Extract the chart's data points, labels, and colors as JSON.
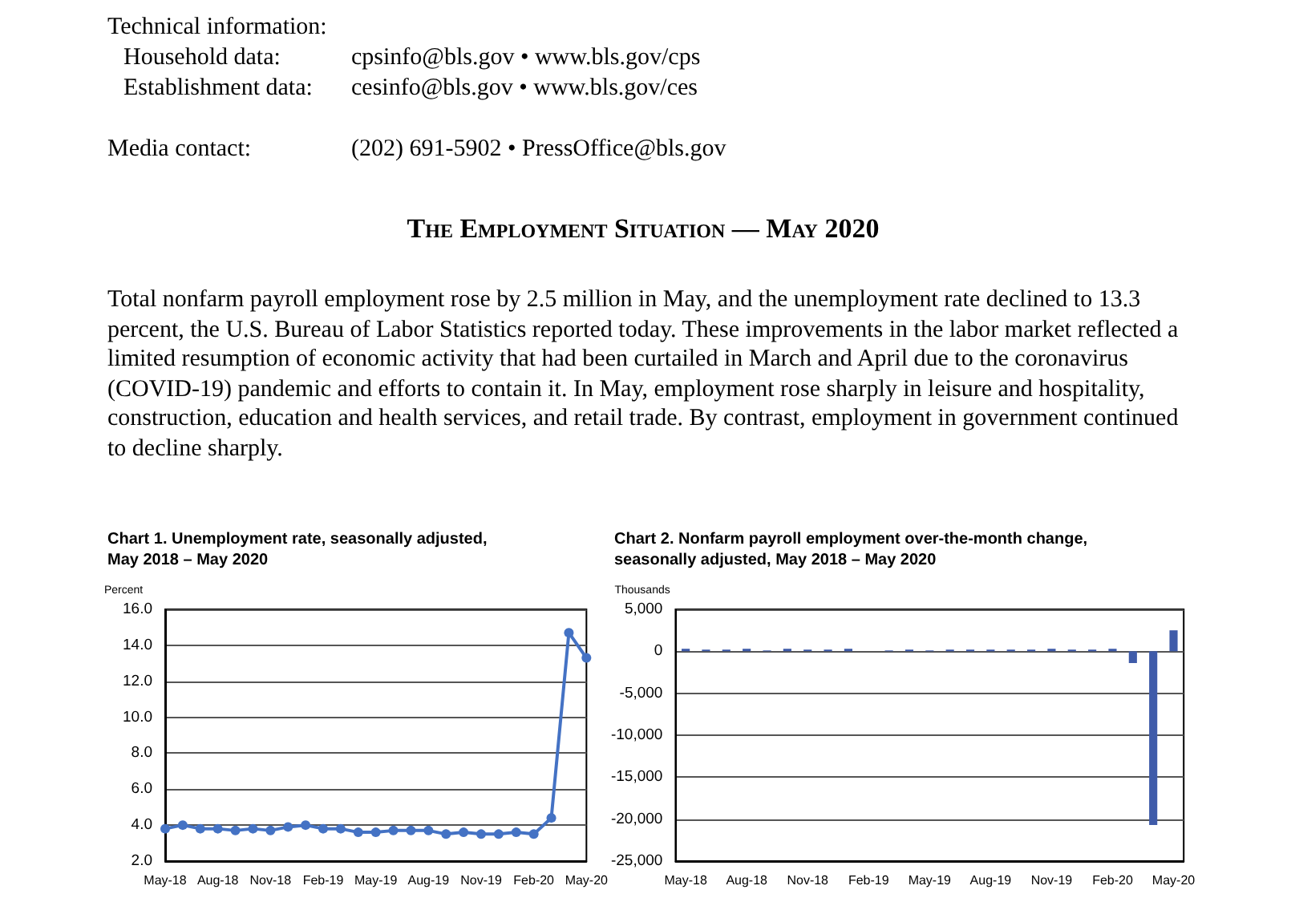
{
  "chart_data": [
    {
      "type": "other",
      "title": "The Employment Situation — May 2020",
      "annotations": [
        "Technical information:",
        "Household data:",
        "cpsinfo@bls.gov • www.bls.gov/cps",
        "Establishment data:",
        "cesinfo@bls.gov • www.bls.gov/ces",
        "Media contact:",
        "(202) 691-5902 • PressOffice@bls.gov",
        "Total nonfarm payroll employment rose by 2.5 million in May, and the unemployment rate declined to 13.3 percent, the U.S. Bureau of Labor Statistics reported today. These improvements in the labor market reflected a limited resumption of economic activity that had been curtailed in March and April due to the coronavirus (COVID-19) pandemic and efforts to contain it. In May, employment rose sharply in leisure and hospitality, construction, education and health services, and retail trade. By contrast, employment in government continued to decline sharply."
      ]
    },
    {
      "type": "line",
      "title": "Chart 1. Unemployment rate, seasonally adjusted,\nMay 2018 – May 2020",
      "ylabel": "Percent",
      "categories": [
        "May-18",
        null,
        null,
        "Aug-18",
        null,
        null,
        "Nov-18",
        null,
        null,
        "Feb-19",
        null,
        null,
        "May-19",
        null,
        null,
        "Aug-19",
        null,
        null,
        "Nov-19",
        null,
        null,
        "Feb-20",
        null,
        null,
        "May-20"
      ],
      "series": [
        {
          "color": "#4472c4",
          "values": [
            3.8,
            4.0,
            3.8,
            3.8,
            3.7,
            3.8,
            3.7,
            3.9,
            4.0,
            3.8,
            3.8,
            3.6,
            3.6,
            3.7,
            3.7,
            3.7,
            3.5,
            3.6,
            3.5,
            3.5,
            3.6,
            3.5,
            4.4,
            14.7,
            13.3
          ]
        }
      ],
      "ylim": [
        2,
        16
      ],
      "yticks": [
        {
          "value": 2,
          "label": "2.0"
        },
        {
          "value": 4,
          "label": "4.0"
        },
        {
          "value": 6,
          "label": "6.0"
        },
        {
          "value": 8,
          "label": "8.0"
        },
        {
          "value": 10,
          "label": "10.0"
        },
        {
          "value": 12,
          "label": "12.0"
        },
        {
          "value": 14,
          "label": "14.0"
        },
        {
          "value": 16,
          "label": "16.0"
        }
      ],
      "grid": "y",
      "marker": "circle",
      "line_style": "solid"
    },
    {
      "type": "bar",
      "title": "Chart 2. Nonfarm payroll employment over-the-month change,\nseasonally adjusted, May 2018 – May 2020",
      "ylabel": "Thousands",
      "categories": [
        "May-18",
        null,
        null,
        "Aug-18",
        null,
        null,
        "Nov-18",
        null,
        null,
        "Feb-19",
        null,
        null,
        "May-19",
        null,
        null,
        "Aug-19",
        null,
        null,
        "Nov-19",
        null,
        null,
        "Feb-20",
        null,
        null,
        "May-20"
      ],
      "series": [
        {
          "color": "#3f5ba9",
          "values": [
            300,
            200,
            200,
            300,
            100,
            300,
            200,
            200,
            300,
            0,
            100,
            200,
            100,
            200,
            200,
            200,
            200,
            200,
            300,
            200,
            200,
            300,
            -1400,
            -20700,
            2500
          ]
        }
      ],
      "ylim": [
        -25000,
        5000
      ],
      "yticks": [
        {
          "value": -25000,
          "label": "-25,000"
        },
        {
          "value": -20000,
          "label": "-20,000"
        },
        {
          "value": -15000,
          "label": "-15,000"
        },
        {
          "value": -10000,
          "label": "-10,000"
        },
        {
          "value": -5000,
          "label": "-5,000"
        },
        {
          "value": 0,
          "label": "0"
        },
        {
          "value": 5000,
          "label": "5,000"
        }
      ],
      "grid": "y"
    }
  ]
}
